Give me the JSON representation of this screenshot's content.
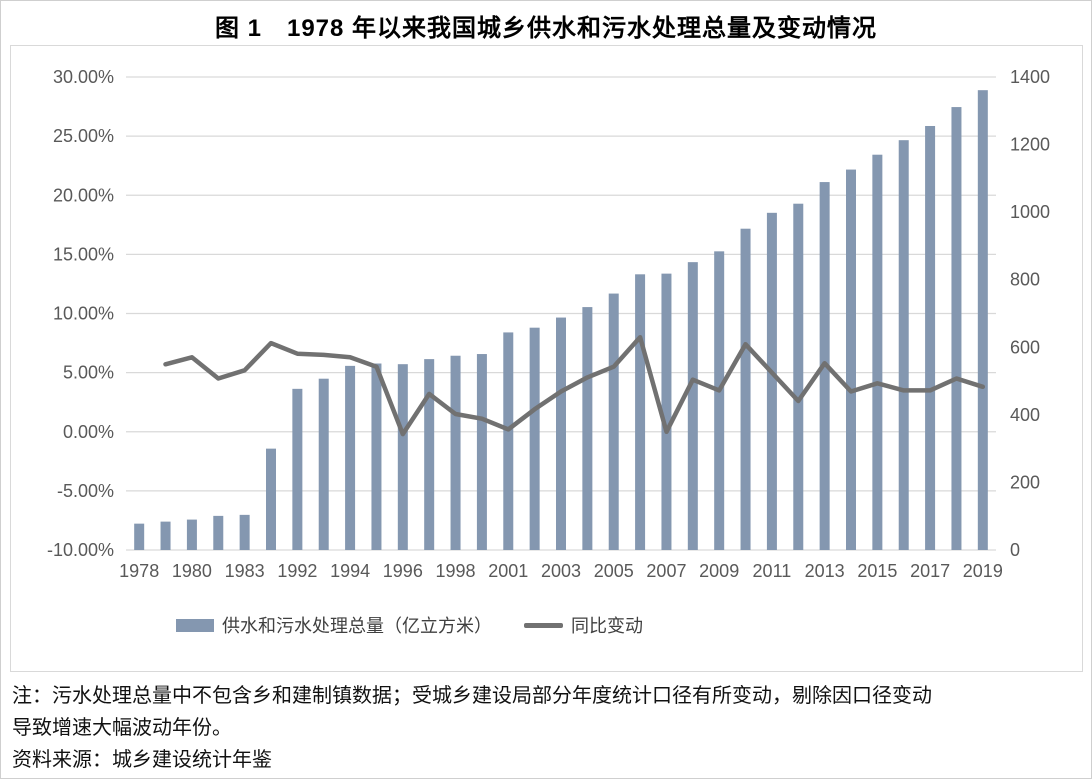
{
  "title": "图 1　1978 年以来我国城乡供水和污水处理总量及变动情况",
  "legend": {
    "bars_label": "供水和污水处理总量（亿立方米）",
    "line_label": "同比变动"
  },
  "notes": {
    "line1": "注：污水处理总量中不包含乡和建制镇数据；受城乡建设局部分年度统计口径有所变动，剔除因口径变动",
    "line2": "导致增速大幅波动年份。",
    "source": "资料来源：城乡建设统计年鉴"
  },
  "colors": {
    "bar": "#8497b0",
    "line": "#717171",
    "grid": "#d9d9d9",
    "axis_text": "#595959",
    "title_text": "#000000"
  },
  "chart_data": {
    "type": "bar",
    "subtype": "combo bar+line, dual axis",
    "title": "图 1　1978 年以来我国城乡供水和污水处理总量及变动情况",
    "categories": [
      "1978",
      "",
      "1980",
      "",
      "1983",
      "",
      "1992",
      "",
      "1994",
      "",
      "1996",
      "",
      "1998",
      "",
      "2001",
      "",
      "2003",
      "",
      "2005",
      "",
      "2007",
      "",
      "2009",
      "",
      "2011",
      "",
      "2013",
      "",
      "2015",
      "",
      "2017",
      "",
      "2019"
    ],
    "x_tick_labels": [
      "1978",
      "1980",
      "1983",
      "1992",
      "1994",
      "1996",
      "1998",
      "2001",
      "2003",
      "2005",
      "2007",
      "2009",
      "2011",
      "2013",
      "2015",
      "2017",
      "2019"
    ],
    "series": [
      {
        "name": "供水和污水处理总量（亿立方米）",
        "type": "bar",
        "axis": "right",
        "values": [
          78,
          84,
          90,
          101,
          104,
          300,
          477,
          507,
          545,
          552,
          550,
          565,
          575,
          580,
          644,
          658,
          688,
          719,
          759,
          816,
          818,
          852,
          884,
          951,
          998,
          1025,
          1089,
          1126,
          1170,
          1213,
          1255,
          1311,
          1361
        ]
      },
      {
        "name": "同比变动",
        "type": "line",
        "axis": "left",
        "unit": "percent",
        "values": [
          null,
          5.7,
          6.3,
          4.5,
          5.2,
          7.5,
          6.6,
          6.5,
          6.3,
          5.5,
          -0.2,
          3.2,
          1.5,
          1.1,
          0.2,
          1.9,
          3.4,
          4.6,
          5.5,
          8.0,
          0.0,
          4.4,
          3.5,
          7.4,
          5.0,
          2.6,
          5.8,
          3.4,
          4.1,
          3.5,
          3.5,
          4.5,
          3.8
        ]
      }
    ],
    "left_axis": {
      "min": -10,
      "max": 30,
      "step": 5,
      "format": "percent",
      "tick_labels": [
        "30.00%",
        "25.00%",
        "20.00%",
        "15.00%",
        "10.00%",
        "5.00%",
        "0.00%",
        "-5.00%",
        "-10.00%"
      ]
    },
    "right_axis": {
      "min": 0,
      "max": 1400,
      "step": 200,
      "tick_labels": [
        "1400",
        "1200",
        "1000",
        "800",
        "600",
        "400",
        "200",
        "0"
      ]
    },
    "grid": "horizontal, from left axis",
    "legend_position": "bottom"
  }
}
